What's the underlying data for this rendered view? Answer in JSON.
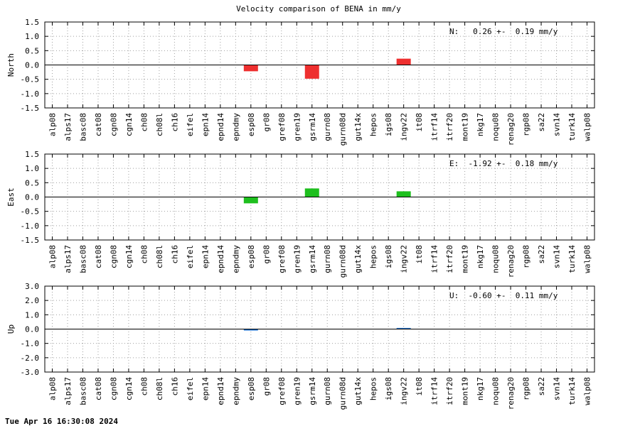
{
  "chart_data": {
    "title": "Velocity comparison of BENA in mm/y",
    "categories": [
      "alp08",
      "alps17",
      "basc08",
      "cat08",
      "cgn08",
      "cgn14",
      "ch08",
      "ch08l",
      "ch16",
      "eifel",
      "epn14",
      "epnd14",
      "epndmy",
      "esp08",
      "gr08",
      "gref08",
      "gren19",
      "gsrm14",
      "gurn08",
      "gurn08d",
      "gut14x",
      "hepos",
      "igs08",
      "ingv22",
      "it08",
      "itrf14",
      "itrf20",
      "mont19",
      "nkg17",
      "noqu08",
      "renag20",
      "rgp08",
      "sa22",
      "svn14",
      "turk14",
      "walp08"
    ],
    "panels": [
      {
        "type": "bar",
        "ylabel": "North",
        "ylim": [
          -1.5,
          1.5
        ],
        "yticks": [
          "1.5",
          "1.0",
          "0.5",
          "0.0",
          "-0.5",
          "-1.0",
          "-1.5"
        ],
        "color": "#ee2f2f",
        "values": [
          0,
          0,
          0,
          0,
          0,
          0,
          0,
          0,
          0,
          0,
          0,
          0,
          0,
          -0.22,
          0,
          0,
          0,
          -0.48,
          0,
          0,
          0,
          0,
          0,
          0.22,
          0,
          0,
          0,
          0,
          0,
          0,
          0,
          0,
          0,
          0,
          0,
          0
        ],
        "annotation": "N:   0.26 +-  0.19 mm/y"
      },
      {
        "type": "bar",
        "ylabel": "East",
        "ylim": [
          -1.5,
          1.5
        ],
        "yticks": [
          "1.5",
          "1.0",
          "0.5",
          "0.0",
          "-0.5",
          "-1.0",
          "-1.5"
        ],
        "color": "#1ebf1e",
        "values": [
          0,
          0,
          0,
          0,
          0,
          0,
          0,
          0,
          0,
          0,
          0,
          0,
          0,
          -0.22,
          0,
          0,
          0,
          0.3,
          0,
          0,
          0,
          0,
          0,
          0.2,
          0,
          0,
          0,
          0,
          0,
          0,
          0,
          0,
          0,
          0,
          0,
          0
        ],
        "annotation": "E:  -1.92 +-  0.18 mm/y"
      },
      {
        "type": "bar",
        "ylabel": "Up",
        "ylim": [
          -3.0,
          3.0
        ],
        "yticks": [
          "3.0",
          "2.0",
          "1.0",
          "0.0",
          "-1.0",
          "-2.0",
          "-3.0"
        ],
        "color": "#1f6fc9",
        "values": [
          0,
          0,
          0,
          0,
          0,
          0,
          0,
          0,
          0,
          0,
          0,
          0,
          0,
          -0.1,
          0,
          0,
          0,
          0,
          0,
          0,
          0,
          0,
          0,
          0.08,
          0,
          0,
          0,
          0,
          0,
          0,
          0,
          0,
          0,
          0,
          0,
          0
        ],
        "annotation": "U:  -0.60 +-  0.11 mm/y"
      }
    ]
  },
  "footer": {
    "timestamp": "Tue Apr 16 16:30:08 2024"
  }
}
